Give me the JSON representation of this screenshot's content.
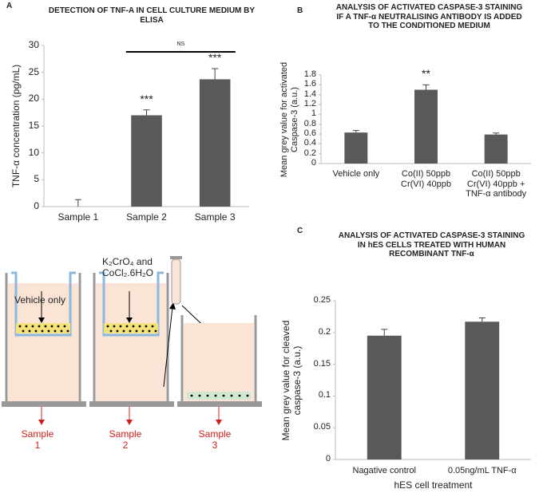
{
  "chart_data": [
    {
      "type": "bar",
      "panel": "A",
      "title": "DETECTION OF TNF-A IN CELL CULTURE MEDIUM BY ELISA",
      "y_label": "TNF-α concentration (pg/mL)",
      "categories": [
        "Sample 1",
        "Sample 2",
        "Sample 3"
      ],
      "values": [
        0,
        17,
        23.7
      ],
      "errors": [
        1.3,
        1,
        2
      ],
      "color": "#595959",
      "significance": [
        null,
        "***",
        "***"
      ],
      "comparisons": [
        {
          "label": "NS",
          "from": "Sample 2",
          "to": "Sample 3"
        }
      ],
      "ylim": [
        0,
        30
      ],
      "yticks": [
        0,
        5,
        10,
        15,
        20,
        25,
        30
      ]
    },
    {
      "type": "bar",
      "panel": "B",
      "title": "ANALYSIS OF ACTIVATED CASPASE-3 STAINING IF A TNF-α NEUTRALISING ANTIBODY IS ADDED TO THE CONDITIONED MEDIUM",
      "y_label": "Mean grey value for activated Caspase-3 (a.u.)",
      "categories": [
        "Vehicle only",
        "Co(II) 50ppb Cr(VI) 40ppb",
        "Co(II) 50ppb Cr(VI) 40ppb + TNF-α antibody"
      ],
      "values": [
        0.63,
        1.5,
        0.59
      ],
      "errors": [
        0.04,
        0.1,
        0.03
      ],
      "color": "#595959",
      "significance": [
        null,
        "**",
        null
      ],
      "ylim": [
        0,
        1.8
      ],
      "yticks": [
        0,
        0.2,
        0.4,
        0.6,
        0.8,
        1,
        1.2,
        1.4,
        1.6,
        1.8
      ]
    },
    {
      "type": "bar",
      "panel": "C",
      "title": "ANALYSIS OF ACTIVATED CASPASE-3 STAINING IN hES CELLS TREATED WITH HUMAN RECOMBINANT TNF-α",
      "y_label": "Mean grey value for cleaved caspase-3 (a.u.)",
      "x_label": "hES cell treatment",
      "categories": [
        "Nagative control",
        "0.05ng/mL TNF-α"
      ],
      "values": [
        0.195,
        0.217
      ],
      "errors": [
        0.01,
        0.006
      ],
      "color": "#595959",
      "ylim": [
        0,
        0.25
      ],
      "yticks": [
        0,
        0.05,
        0.1,
        0.15,
        0.2,
        0.25
      ]
    }
  ],
  "diagram": {
    "labels": [
      "Vehicle only",
      "K₂CrO₄ and CoCl₂.6H₂O"
    ],
    "samples": [
      "Sample 1",
      "Sample 2",
      "Sample 3"
    ]
  }
}
